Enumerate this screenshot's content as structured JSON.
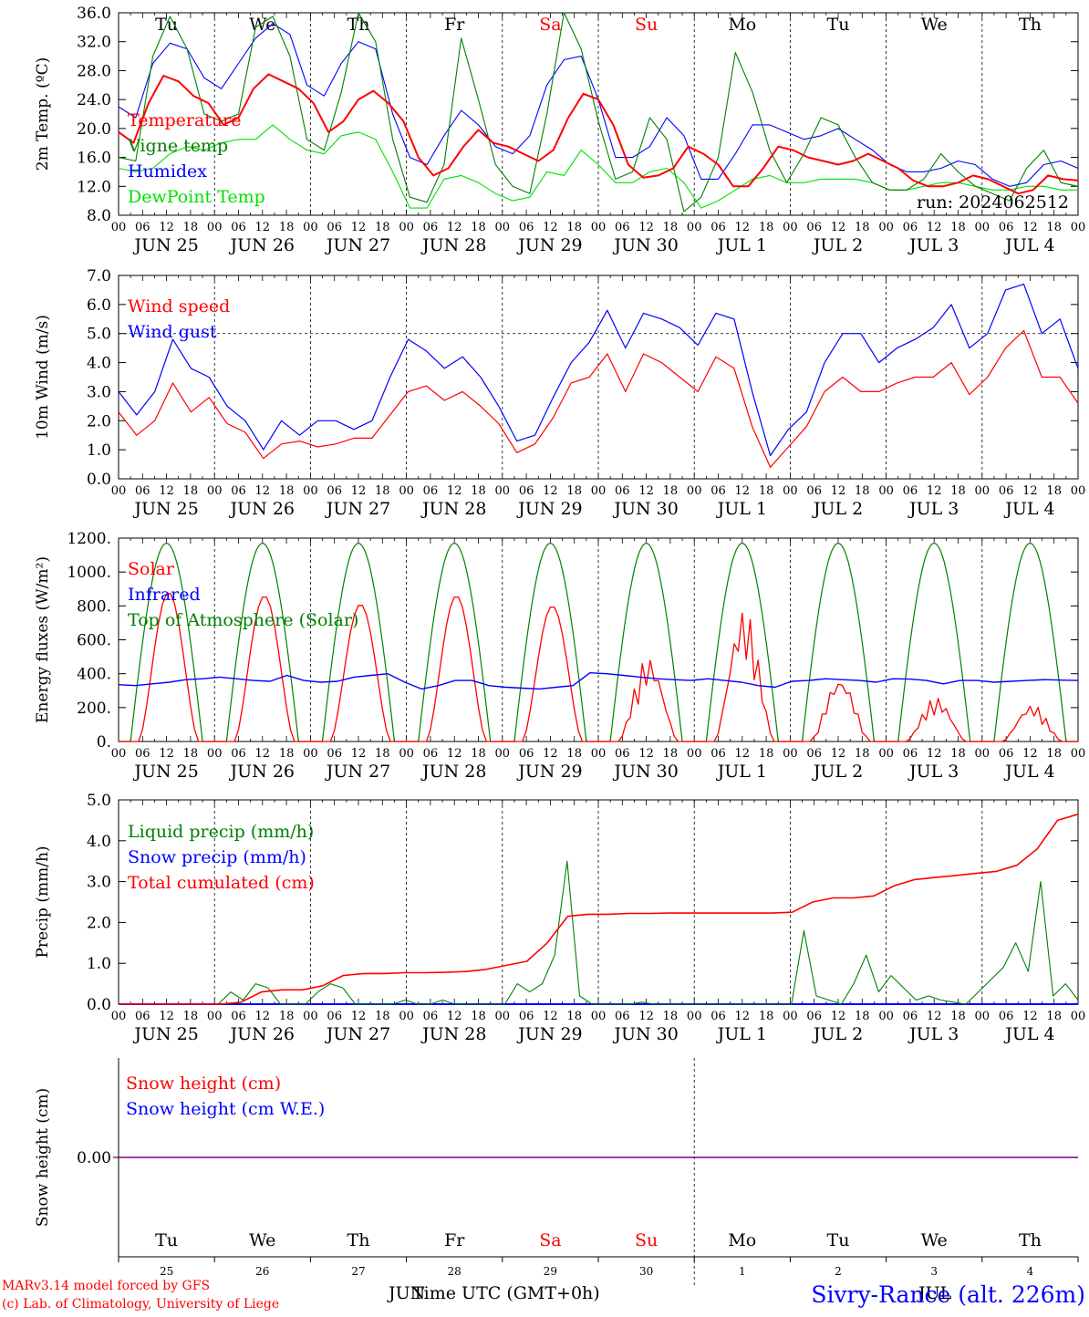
{
  "footer": {
    "model": "MARv3.14 model forced by GFS",
    "lab": "(c) Lab. of Climatology, University of Liege",
    "xlabel": "Time UTC (GMT+0h)",
    "station": "Sivry-Rance (alt. 226m)",
    "month_left": "JUN",
    "month_right": "JUL"
  },
  "colors": {
    "red": "#ff0000",
    "green": "#008000",
    "blue": "#0000ff",
    "lightgreen": "#00e000",
    "purple": "#800080"
  },
  "day_names": [
    "Tu",
    "We",
    "Th",
    "Fr",
    "Sa",
    "Su",
    "Mo",
    "Tu",
    "We",
    "Th"
  ],
  "weekend_days": [
    4,
    5
  ],
  "date_labels": [
    "JUN 25",
    "JUN 26",
    "JUN 27",
    "JUN 28",
    "JUN 29",
    "JUN 30",
    "JUL  1",
    "JUL  2",
    "JUL  3",
    "JUL  4"
  ],
  "day_numbers": [
    "25",
    "26",
    "27",
    "28",
    "29",
    "30",
    "1",
    "2",
    "3",
    "4"
  ],
  "hour_ticks": [
    "00",
    "06",
    "12",
    "18"
  ],
  "chart_data": [
    {
      "type": "line",
      "ylabel": "2m Temp. (ºC)",
      "ylim": [
        8,
        36
      ],
      "yticks": [
        "8.0",
        "12.0",
        "16.0",
        "20.0",
        "24.0",
        "28.0",
        "32.0",
        "36.0"
      ],
      "run_label": "run: 2024062512",
      "x_unit_hours": 6,
      "series": [
        {
          "name": "Temperature",
          "color": "red",
          "values": [
            19.5,
            18.0,
            23.5,
            27.3,
            26.5,
            24.5,
            23.5,
            20.5,
            21.5,
            25.5,
            27.5,
            26.5,
            25.5,
            23.5,
            19.5,
            21.0,
            24.0,
            25.2,
            23.5,
            21.0,
            16.0,
            13.5,
            14.5,
            17.5,
            19.8,
            18.0,
            17.5,
            16.5,
            15.5,
            17.0,
            21.5,
            24.8,
            24.0,
            20.5,
            15.0,
            13.2,
            13.5,
            14.5,
            17.5,
            16.5,
            15.0,
            12.0,
            12.0,
            14.5,
            17.5,
            17.0,
            16.0,
            15.5,
            15.0,
            15.5,
            16.5,
            15.5,
            14.5,
            12.8,
            12.0,
            12.0,
            12.5,
            13.5,
            13.0,
            12.0,
            11.0,
            11.5,
            13.5,
            13.0,
            12.8
          ]
        },
        {
          "name": "Vigne temp",
          "color": "green",
          "values": [
            16.0,
            15.5,
            30.0,
            35.5,
            31.0,
            22.0,
            21.0,
            22.0,
            34.0,
            35.5,
            30.0,
            18.5,
            17.0,
            25.0,
            36.0,
            32.0,
            18.5,
            10.5,
            9.8,
            15.0,
            32.5,
            24.0,
            15.0,
            12.0,
            11.0,
            22.0,
            36.0,
            31.0,
            21.0,
            13.0,
            14.0,
            21.5,
            18.5,
            8.5,
            10.5,
            16.0,
            30.5,
            25.0,
            17.0,
            12.5,
            16.5,
            21.5,
            20.5,
            16.0,
            12.5,
            11.5,
            11.5,
            13.0,
            16.5,
            14.0,
            12.0,
            11.0,
            10.0,
            14.5,
            17.0,
            12.5,
            12.0
          ]
        },
        {
          "name": "Humidex",
          "color": "blue",
          "values": [
            23.0,
            21.5,
            29.0,
            31.8,
            31.0,
            27.0,
            25.5,
            29.0,
            32.5,
            34.5,
            33.0,
            26.0,
            24.5,
            29.0,
            32.0,
            31.0,
            22.0,
            16.0,
            15.0,
            19.0,
            22.5,
            20.5,
            17.5,
            16.5,
            19.0,
            26.0,
            29.5,
            30.0,
            24.0,
            16.0,
            16.0,
            17.5,
            21.5,
            19.0,
            13.0,
            13.0,
            16.5,
            20.5,
            20.5,
            19.5,
            18.5,
            19.0,
            20.0,
            18.5,
            17.0,
            15.0,
            14.0,
            14.0,
            14.5,
            15.5,
            15.0,
            13.0,
            12.0,
            12.5,
            15.0,
            15.5,
            14.5
          ]
        },
        {
          "name": "DewPoint Temp",
          "color": "lightgreen",
          "values": [
            14.5,
            14.0,
            14.5,
            16.5,
            17.5,
            17.0,
            18.0,
            18.5,
            18.5,
            20.5,
            18.5,
            17.0,
            16.5,
            19.0,
            19.5,
            18.5,
            14.0,
            9.0,
            9.0,
            13.0,
            13.5,
            12.5,
            11.0,
            10.0,
            10.5,
            14.0,
            13.5,
            17.0,
            15.0,
            12.5,
            12.5,
            14.0,
            14.5,
            12.5,
            9.0,
            10.0,
            11.5,
            13.0,
            13.5,
            12.5,
            12.5,
            13.0,
            13.0,
            13.0,
            12.5,
            11.5,
            11.5,
            12.0,
            12.5,
            12.5,
            12.0,
            11.5,
            11.5,
            12.0,
            12.0,
            11.5,
            11.5
          ]
        }
      ]
    },
    {
      "type": "line",
      "ylabel": "10m Wind (m/s)",
      "ylim": [
        0,
        7
      ],
      "yticks": [
        "0.0",
        "1.0",
        "2.0",
        "3.0",
        "4.0",
        "5.0",
        "6.0",
        "7.0"
      ],
      "ref_line": 5,
      "x_unit_hours": 6,
      "series": [
        {
          "name": "Wind speed",
          "color": "red",
          "values": [
            2.3,
            1.5,
            2.0,
            3.3,
            2.3,
            2.8,
            1.9,
            1.6,
            0.7,
            1.2,
            1.3,
            1.1,
            1.2,
            1.4,
            1.4,
            2.2,
            3.0,
            3.2,
            2.7,
            3.0,
            2.5,
            1.9,
            0.9,
            1.2,
            2.1,
            3.3,
            3.5,
            4.3,
            3.0,
            4.3,
            4.0,
            3.5,
            3.0,
            4.2,
            3.8,
            1.8,
            0.4,
            1.1,
            1.8,
            3.0,
            3.5,
            3.0,
            3.0,
            3.3,
            3.5,
            3.5,
            4.0,
            2.9,
            3.5,
            4.5,
            5.1,
            3.5,
            3.5,
            2.6
          ]
        },
        {
          "name": "Wind gust",
          "color": "blue",
          "values": [
            3.0,
            2.2,
            3.0,
            4.8,
            3.8,
            3.5,
            2.5,
            2.0,
            1.0,
            2.0,
            1.5,
            2.0,
            2.0,
            1.7,
            2.0,
            3.5,
            4.8,
            4.4,
            3.8,
            4.2,
            3.5,
            2.5,
            1.3,
            1.5,
            2.8,
            4.0,
            4.7,
            5.8,
            4.5,
            5.7,
            5.5,
            5.2,
            4.6,
            5.7,
            5.5,
            3.0,
            0.8,
            1.7,
            2.3,
            4.0,
            5.0,
            5.0,
            4.0,
            4.5,
            4.8,
            5.2,
            6.0,
            4.5,
            5.0,
            6.5,
            6.7,
            5.0,
            5.5,
            3.8
          ]
        }
      ]
    },
    {
      "type": "line",
      "ylabel": "Energy fluxes (W/m²)",
      "ylim": [
        0,
        1200
      ],
      "yticks": [
        "0.",
        "200.",
        "400.",
        "600.",
        "800.",
        "1000.",
        "1200."
      ],
      "series": [
        {
          "name": "Solar",
          "color": "red",
          "peaks": [
            880,
            860,
            810,
            860,
            800,
            500,
            780,
            380,
            260,
            220
          ]
        },
        {
          "name": "Infrared",
          "color": "blue",
          "values": [
            335,
            330,
            340,
            350,
            365,
            370,
            380,
            370,
            360,
            355,
            390,
            360,
            350,
            355,
            380,
            390,
            400,
            350,
            310,
            330,
            360,
            360,
            330,
            320,
            315,
            310,
            320,
            330,
            405,
            400,
            390,
            380,
            370,
            365,
            360,
            370,
            360,
            350,
            330,
            320,
            355,
            360,
            370,
            365,
            360,
            350,
            370,
            368,
            360,
            340,
            360,
            360,
            350,
            355,
            360,
            365,
            362,
            360
          ]
        },
        {
          "name": "Top of Atmosphere (Solar)",
          "color": "green",
          "peak": 1170
        }
      ]
    },
    {
      "type": "line",
      "ylabel": "Precip (mm/h)",
      "ylim": [
        0,
        5
      ],
      "yticks": [
        "0.0",
        "1.0",
        "2.0",
        "3.0",
        "4.0",
        "5.0"
      ],
      "series": [
        {
          "name": "Liquid precip (mm/h)",
          "color": "green",
          "values": [
            0,
            0,
            0,
            0,
            0,
            0,
            0,
            0,
            0,
            0.3,
            0.1,
            0.5,
            0.4,
            0,
            0,
            0,
            0.3,
            0.5,
            0.4,
            0,
            0,
            0,
            0,
            0.1,
            0,
            0,
            0.1,
            0,
            0,
            0,
            0,
            0,
            0.5,
            0.3,
            0.5,
            1.2,
            3.5,
            0.2,
            0,
            0,
            0,
            0,
            0.05,
            0,
            0,
            0,
            0,
            0,
            0,
            0,
            0,
            0,
            0,
            0,
            0,
            1.8,
            0.2,
            0.1,
            0,
            0.5,
            1.2,
            0.3,
            0.7,
            0.4,
            0.1,
            0.2,
            0.1,
            0.05,
            0,
            0.3,
            0.6,
            0.9,
            1.5,
            0.8,
            3.0,
            0.2,
            0.5,
            0.1
          ]
        },
        {
          "name": "Snow precip (mm/h)",
          "color": "blue",
          "values": [
            0
          ]
        },
        {
          "name": "Total cumulated (cm)",
          "color": "red",
          "values": [
            0,
            0,
            0,
            0,
            0,
            0,
            0.05,
            0.3,
            0.35,
            0.35,
            0.45,
            0.7,
            0.75,
            0.75,
            0.77,
            0.77,
            0.78,
            0.8,
            0.85,
            0.95,
            1.05,
            1.5,
            2.15,
            2.2,
            2.2,
            2.22,
            2.22,
            2.23,
            2.23,
            2.23,
            2.23,
            2.23,
            2.23,
            2.25,
            2.5,
            2.6,
            2.6,
            2.65,
            2.9,
            3.05,
            3.1,
            3.15,
            3.2,
            3.25,
            3.4,
            3.8,
            4.5,
            4.65
          ]
        }
      ]
    },
    {
      "type": "line",
      "ylabel": "Snow height (cm)",
      "ylim": [
        -1,
        1
      ],
      "yticks": [
        "0.00"
      ],
      "series": [
        {
          "name": "Snow height (cm)",
          "color": "red",
          "values": [
            0,
            0
          ]
        },
        {
          "name": "Snow height (cm W.E.)",
          "color": "blue",
          "values": [
            0,
            0
          ]
        }
      ]
    }
  ]
}
